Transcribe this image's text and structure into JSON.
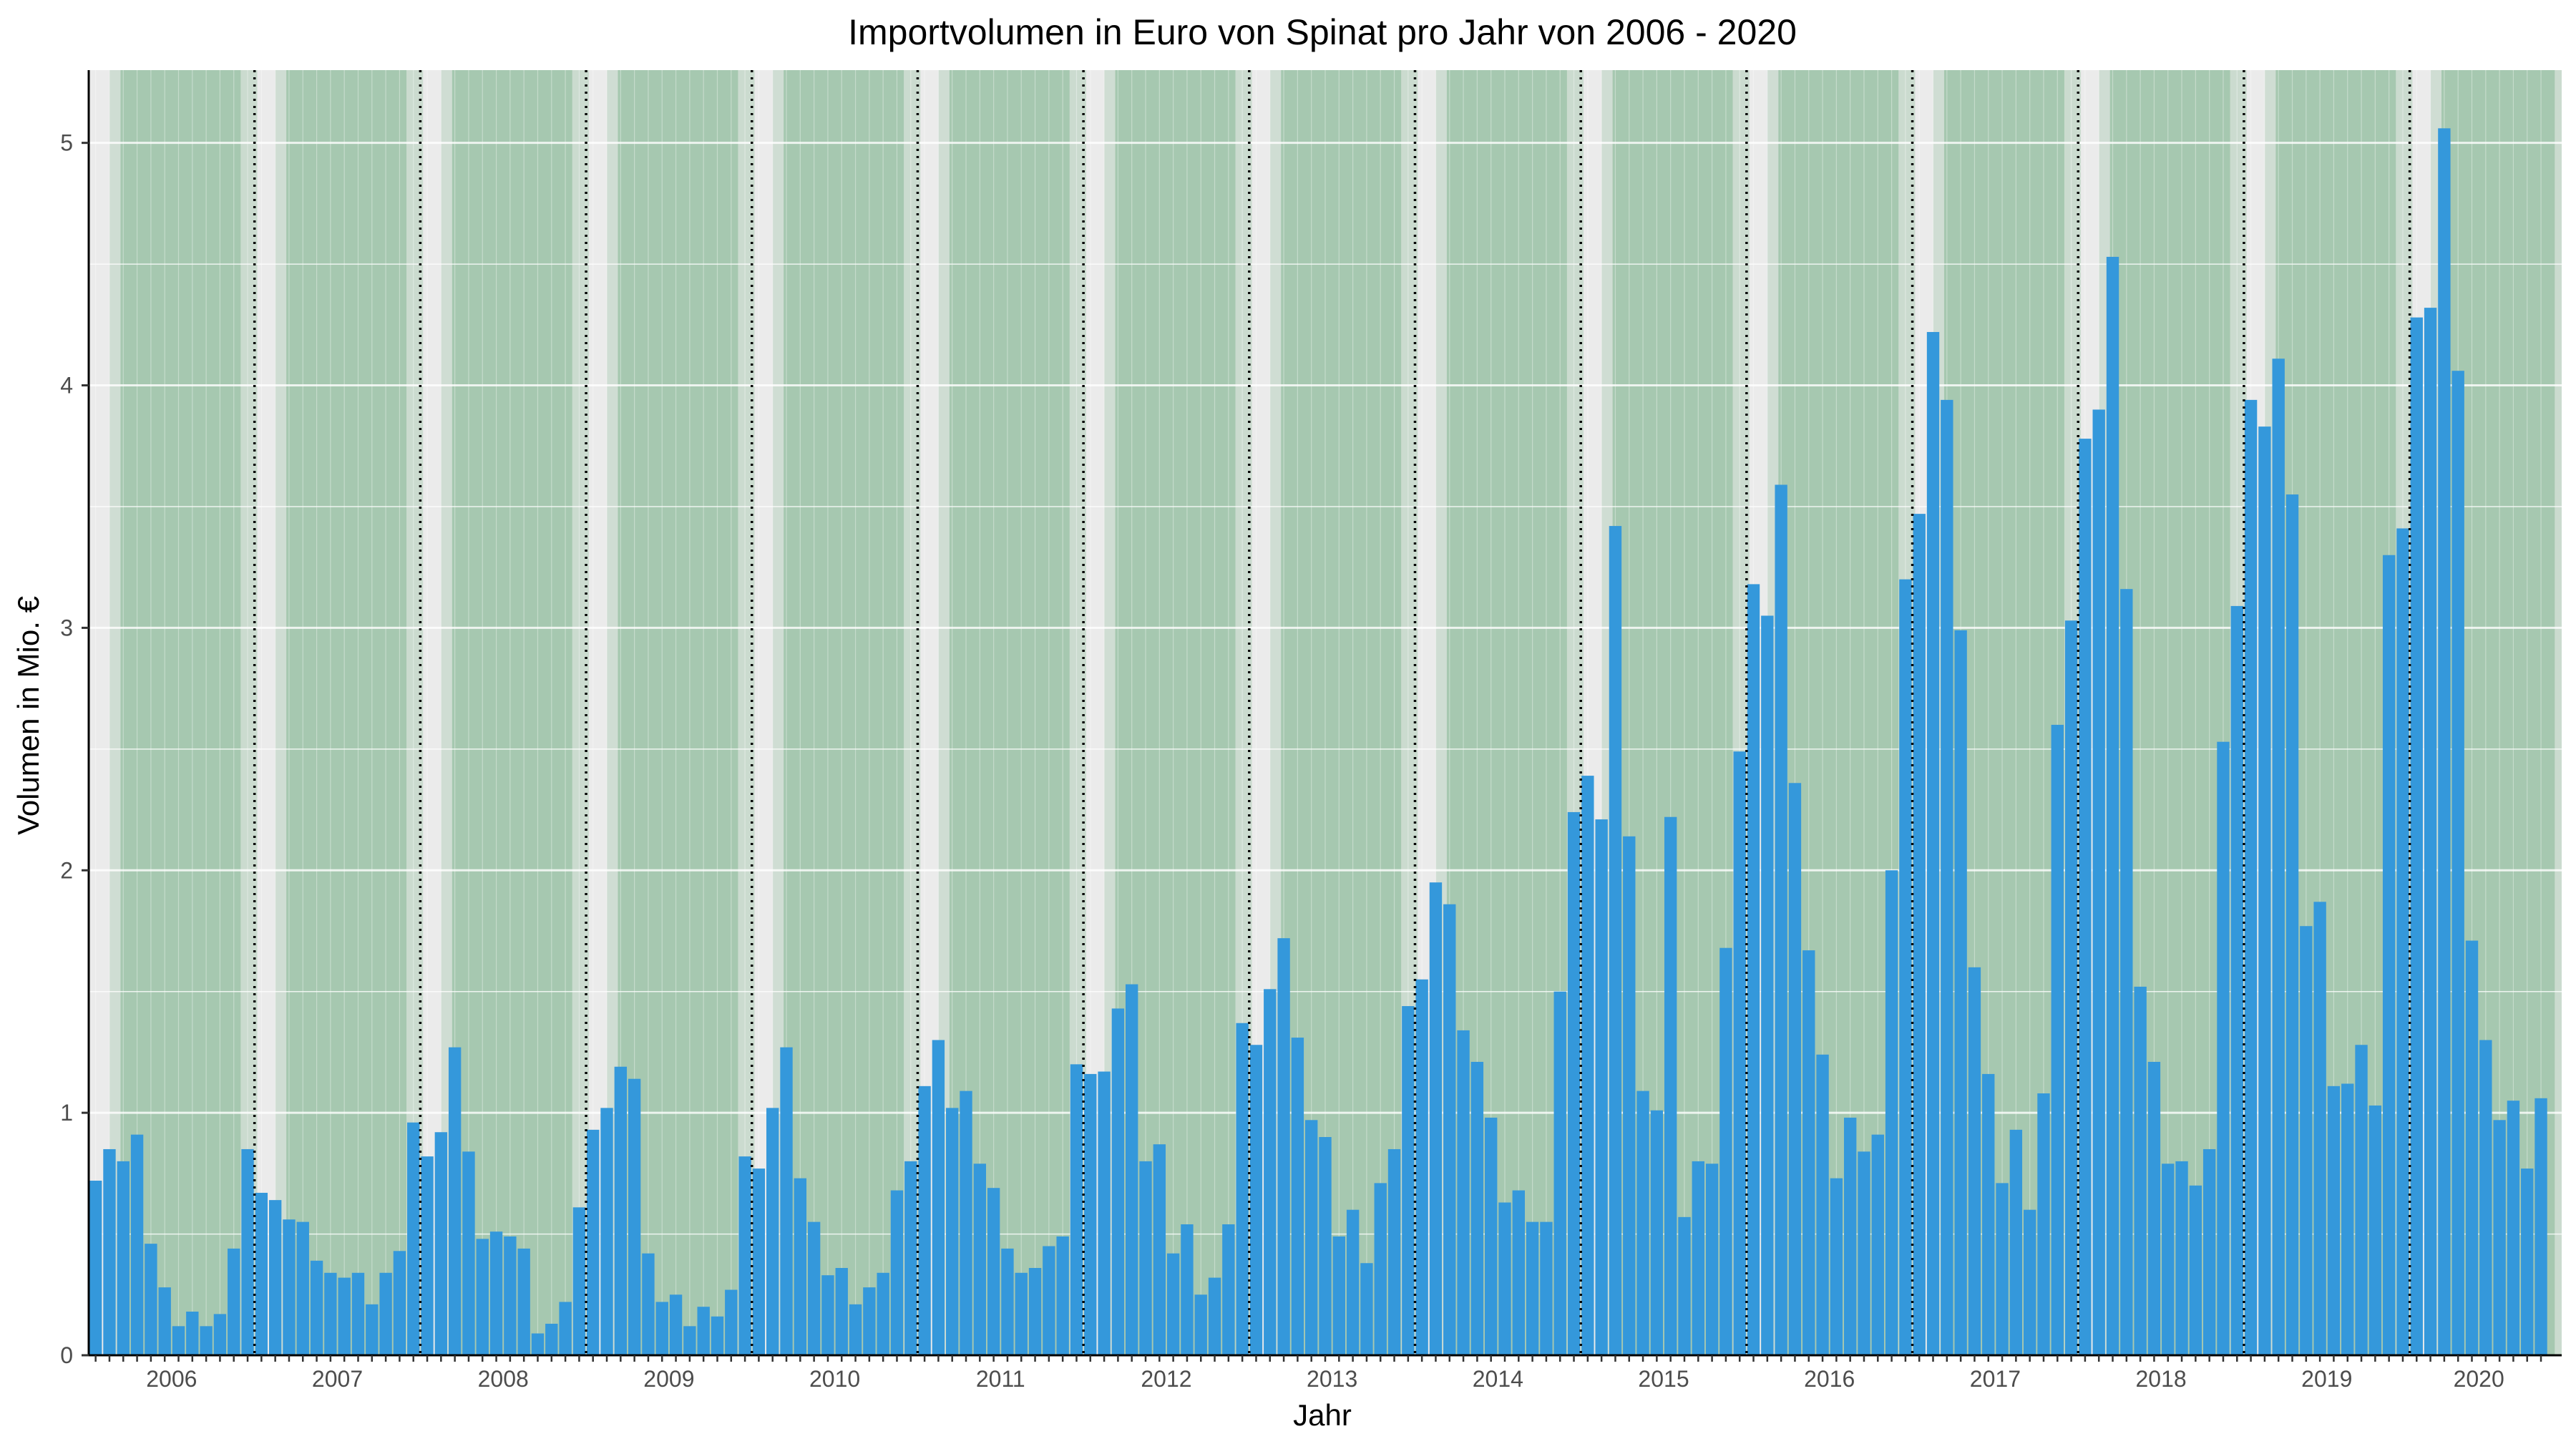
{
  "chart_data": {
    "type": "bar",
    "title": "Importvolumen in Euro von Spinat pro Jahr von 2006 - 2020",
    "xlabel": "Jahr",
    "ylabel": "Volumen in Mio. €",
    "ylim": [
      0,
      5.3
    ],
    "yticks": [
      0,
      1,
      2,
      3,
      4,
      5
    ],
    "years": [
      "2006",
      "2007",
      "2008",
      "2009",
      "2010",
      "2011",
      "2012",
      "2013",
      "2014",
      "2015",
      "2016",
      "2017",
      "2018",
      "2019",
      "2020"
    ],
    "months_per_year": 12,
    "last_year_months": 10,
    "grid": true,
    "year_separators": "dotted vertical line at each year start",
    "season_shading": "green band roughly March–November each year",
    "bar_color": "#3498db",
    "background_color": "#ebebeb",
    "grid_color": "#ffffff",
    "season_color": "#8fbc9c",
    "values": [
      0.72,
      0.85,
      0.8,
      0.91,
      0.46,
      0.28,
      0.12,
      0.18,
      0.12,
      0.17,
      0.44,
      0.85,
      0.67,
      0.64,
      0.56,
      0.55,
      0.39,
      0.34,
      0.32,
      0.34,
      0.21,
      0.34,
      0.43,
      0.96,
      0.82,
      0.92,
      1.27,
      0.84,
      0.48,
      0.51,
      0.49,
      0.44,
      0.09,
      0.13,
      0.22,
      0.61,
      0.93,
      1.02,
      1.19,
      1.14,
      0.42,
      0.22,
      0.25,
      0.12,
      0.2,
      0.16,
      0.27,
      0.82,
      0.77,
      1.02,
      1.27,
      0.73,
      0.55,
      0.33,
      0.36,
      0.21,
      0.28,
      0.34,
      0.68,
      0.8,
      1.11,
      1.3,
      1.02,
      1.09,
      0.79,
      0.69,
      0.44,
      0.34,
      0.36,
      0.45,
      0.49,
      1.2,
      1.16,
      1.17,
      1.43,
      1.53,
      0.8,
      0.87,
      0.42,
      0.54,
      0.25,
      0.32,
      0.54,
      1.37,
      1.28,
      1.51,
      1.72,
      1.31,
      0.97,
      0.9,
      0.49,
      0.6,
      0.38,
      0.71,
      0.85,
      1.44,
      1.55,
      1.95,
      1.86,
      1.34,
      1.21,
      0.98,
      0.63,
      0.68,
      0.55,
      0.55,
      1.5,
      2.24,
      2.39,
      2.21,
      3.42,
      2.14,
      1.09,
      1.01,
      2.22,
      0.57,
      0.8,
      0.79,
      1.68,
      2.49,
      3.18,
      3.05,
      3.59,
      2.36,
      1.67,
      1.24,
      0.73,
      0.98,
      0.84,
      0.91,
      2.0,
      3.2,
      3.47,
      4.22,
      3.94,
      2.99,
      1.6,
      1.16,
      0.71,
      0.93,
      0.6,
      1.08,
      2.6,
      3.03,
      3.78,
      3.9,
      4.53,
      3.16,
      1.52,
      1.21,
      0.79,
      0.8,
      0.7,
      0.85,
      2.53,
      3.09,
      3.94,
      3.83,
      4.11,
      3.55,
      1.77,
      1.87,
      1.11,
      1.12,
      1.28,
      1.03,
      3.3,
      3.41,
      4.28,
      4.32,
      5.06,
      4.06,
      1.71,
      1.3,
      0.97,
      1.05,
      0.77,
      1.06
    ]
  }
}
